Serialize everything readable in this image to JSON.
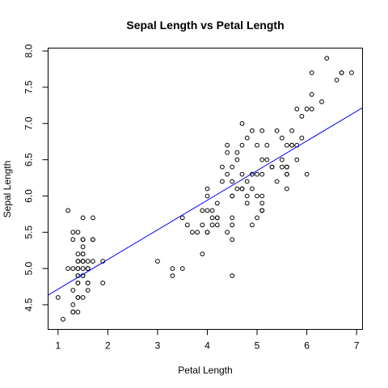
{
  "chart_data": {
    "type": "scatter",
    "title": "Sepal Length vs Petal Length",
    "xlabel": "Petal Length",
    "ylabel": "Sepal Length",
    "xlim": [
      0.8,
      7.12
    ],
    "ylim": [
      4.16,
      8.04
    ],
    "xticks": [
      1,
      2,
      3,
      4,
      5,
      6,
      7
    ],
    "yticks": [
      4.5,
      5.0,
      5.5,
      6.0,
      6.5,
      7.0,
      7.5,
      8.0
    ],
    "ytick_labels": [
      "4.5",
      "5.0",
      "5.5",
      "6.0",
      "6.5",
      "7.0",
      "7.5",
      "8.0"
    ],
    "point_style": "open-circle",
    "grid": false,
    "fit_line": {
      "intercept": 4.306,
      "slope": 0.4089,
      "color": "#0000ff"
    },
    "points": [
      [
        1.4,
        5.1
      ],
      [
        1.4,
        4.9
      ],
      [
        1.3,
        4.7
      ],
      [
        1.5,
        4.6
      ],
      [
        1.4,
        5.0
      ],
      [
        1.7,
        5.4
      ],
      [
        1.4,
        4.6
      ],
      [
        1.5,
        5.0
      ],
      [
        1.4,
        4.4
      ],
      [
        1.5,
        4.9
      ],
      [
        1.5,
        5.4
      ],
      [
        1.6,
        4.8
      ],
      [
        1.4,
        4.8
      ],
      [
        1.1,
        4.3
      ],
      [
        1.2,
        5.8
      ],
      [
        1.5,
        5.7
      ],
      [
        1.3,
        5.4
      ],
      [
        1.4,
        5.1
      ],
      [
        1.7,
        5.7
      ],
      [
        1.5,
        5.1
      ],
      [
        1.7,
        5.4
      ],
      [
        1.5,
        5.1
      ],
      [
        1.0,
        4.6
      ],
      [
        1.7,
        5.1
      ],
      [
        1.9,
        4.8
      ],
      [
        1.6,
        5.0
      ],
      [
        1.6,
        5.0
      ],
      [
        1.5,
        5.2
      ],
      [
        1.4,
        5.2
      ],
      [
        1.6,
        4.7
      ],
      [
        1.6,
        4.8
      ],
      [
        1.5,
        5.4
      ],
      [
        1.5,
        5.2
      ],
      [
        1.4,
        5.5
      ],
      [
        1.5,
        4.9
      ],
      [
        1.2,
        5.0
      ],
      [
        1.3,
        5.5
      ],
      [
        1.4,
        4.9
      ],
      [
        1.3,
        4.4
      ],
      [
        1.5,
        5.1
      ],
      [
        1.3,
        5.0
      ],
      [
        1.3,
        4.5
      ],
      [
        1.3,
        4.4
      ],
      [
        1.6,
        5.0
      ],
      [
        1.9,
        5.1
      ],
      [
        1.4,
        4.8
      ],
      [
        1.6,
        5.1
      ],
      [
        1.4,
        4.6
      ],
      [
        1.5,
        5.3
      ],
      [
        1.4,
        5.0
      ],
      [
        4.7,
        7.0
      ],
      [
        4.5,
        6.4
      ],
      [
        4.9,
        6.9
      ],
      [
        4.0,
        5.5
      ],
      [
        4.6,
        6.5
      ],
      [
        4.5,
        5.7
      ],
      [
        4.7,
        6.3
      ],
      [
        3.3,
        4.9
      ],
      [
        4.6,
        6.6
      ],
      [
        3.9,
        5.2
      ],
      [
        3.5,
        5.0
      ],
      [
        4.2,
        5.9
      ],
      [
        4.0,
        6.0
      ],
      [
        4.7,
        6.1
      ],
      [
        3.6,
        5.6
      ],
      [
        4.4,
        6.7
      ],
      [
        4.5,
        5.6
      ],
      [
        4.1,
        5.8
      ],
      [
        4.5,
        6.2
      ],
      [
        3.9,
        5.6
      ],
      [
        4.8,
        5.9
      ],
      [
        4.0,
        6.1
      ],
      [
        4.9,
        6.3
      ],
      [
        4.7,
        6.1
      ],
      [
        4.3,
        6.4
      ],
      [
        4.4,
        6.6
      ],
      [
        4.8,
        6.8
      ],
      [
        5.0,
        6.7
      ],
      [
        4.5,
        6.0
      ],
      [
        3.5,
        5.7
      ],
      [
        3.8,
        5.5
      ],
      [
        3.7,
        5.5
      ],
      [
        3.9,
        5.8
      ],
      [
        5.1,
        6.0
      ],
      [
        4.5,
        5.4
      ],
      [
        4.5,
        6.0
      ],
      [
        4.7,
        6.7
      ],
      [
        4.4,
        6.3
      ],
      [
        4.1,
        5.6
      ],
      [
        4.0,
        5.5
      ],
      [
        4.4,
        5.5
      ],
      [
        4.6,
        6.1
      ],
      [
        4.0,
        5.8
      ],
      [
        3.3,
        5.0
      ],
      [
        4.2,
        5.6
      ],
      [
        4.2,
        5.7
      ],
      [
        4.2,
        5.7
      ],
      [
        4.3,
        6.2
      ],
      [
        3.0,
        5.1
      ],
      [
        4.1,
        5.7
      ],
      [
        6.0,
        6.3
      ],
      [
        5.1,
        5.8
      ],
      [
        5.9,
        7.1
      ],
      [
        5.6,
        6.3
      ],
      [
        5.8,
        6.5
      ],
      [
        6.6,
        7.6
      ],
      [
        4.5,
        4.9
      ],
      [
        6.3,
        7.3
      ],
      [
        5.8,
        6.7
      ],
      [
        6.1,
        7.2
      ],
      [
        5.1,
        6.5
      ],
      [
        5.3,
        6.4
      ],
      [
        5.5,
        6.8
      ],
      [
        5.0,
        5.7
      ],
      [
        5.1,
        5.8
      ],
      [
        5.3,
        6.4
      ],
      [
        5.5,
        6.5
      ],
      [
        6.7,
        7.7
      ],
      [
        6.9,
        7.7
      ],
      [
        5.0,
        6.0
      ],
      [
        5.7,
        6.9
      ],
      [
        4.9,
        5.6
      ],
      [
        6.7,
        7.7
      ],
      [
        4.9,
        6.3
      ],
      [
        5.7,
        6.7
      ],
      [
        6.0,
        7.2
      ],
      [
        4.8,
        6.2
      ],
      [
        4.9,
        6.1
      ],
      [
        5.6,
        6.4
      ],
      [
        5.8,
        7.2
      ],
      [
        6.1,
        7.4
      ],
      [
        6.4,
        7.9
      ],
      [
        5.6,
        6.4
      ],
      [
        5.1,
        6.3
      ],
      [
        5.6,
        6.1
      ],
      [
        6.1,
        7.7
      ],
      [
        5.6,
        6.3
      ],
      [
        5.5,
        6.4
      ],
      [
        4.8,
        6.0
      ],
      [
        5.4,
        6.9
      ],
      [
        5.6,
        6.7
      ],
      [
        5.1,
        6.9
      ],
      [
        5.1,
        5.8
      ],
      [
        5.9,
        6.8
      ],
      [
        5.7,
        6.7
      ],
      [
        5.2,
        6.7
      ],
      [
        5.0,
        6.3
      ],
      [
        5.2,
        6.5
      ],
      [
        5.4,
        6.2
      ],
      [
        5.1,
        5.9
      ]
    ]
  }
}
